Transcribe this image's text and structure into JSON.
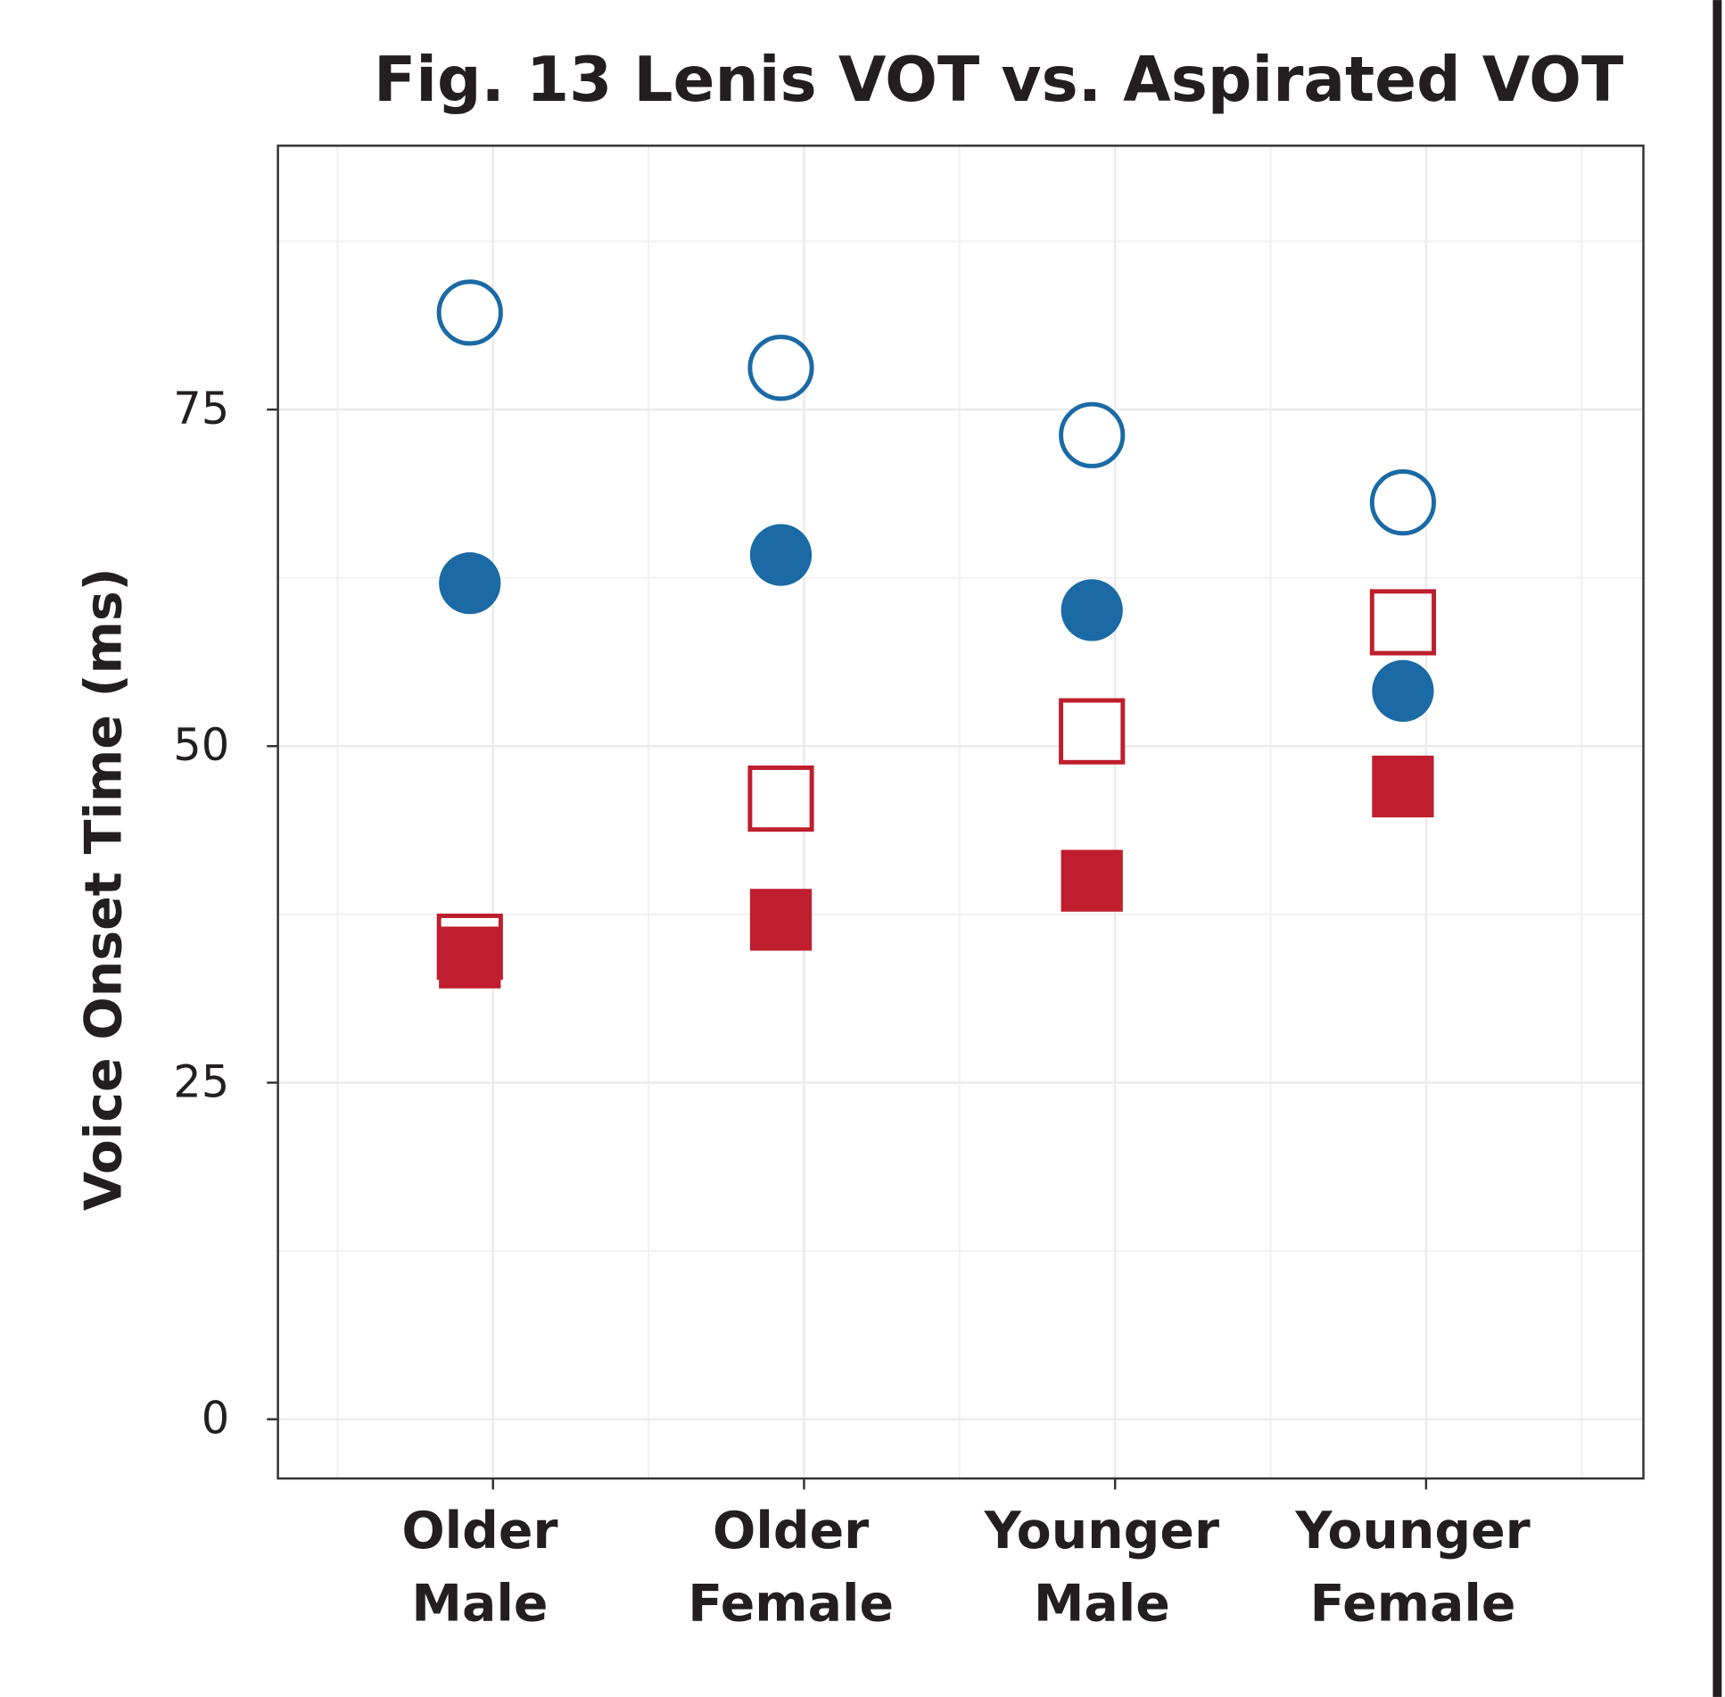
{
  "chart_data": {
    "type": "scatter",
    "title": "Fig. 13 Lenis VOT  vs. Aspirated VOT",
    "y_label": "Voice Onset Time (ms)",
    "categories": [
      "Older Male",
      "Older Female",
      "Younger Male",
      "Younger Female"
    ],
    "series": [
      {
        "color": "#1b6aa5",
        "marker": "circle",
        "filled": false,
        "values": [
          82.2,
          78.1,
          73.1,
          68.1
        ]
      },
      {
        "color": "#1b6aa5",
        "marker": "circle",
        "filled": true,
        "values": [
          62.1,
          64.2,
          60.1,
          54.1
        ]
      },
      {
        "color": "#be1e2d",
        "marker": "square",
        "filled": false,
        "values": [
          35.1,
          46.1,
          51.1,
          59.2
        ]
      },
      {
        "color": "#be1e2d",
        "marker": "square",
        "filled": true,
        "values": [
          34.3,
          37.1,
          40.0,
          47.0
        ]
      }
    ],
    "ylim": [
      -4.4,
      94.6
    ],
    "yticks": [
      0,
      25,
      50,
      75
    ],
    "grid": true
  }
}
